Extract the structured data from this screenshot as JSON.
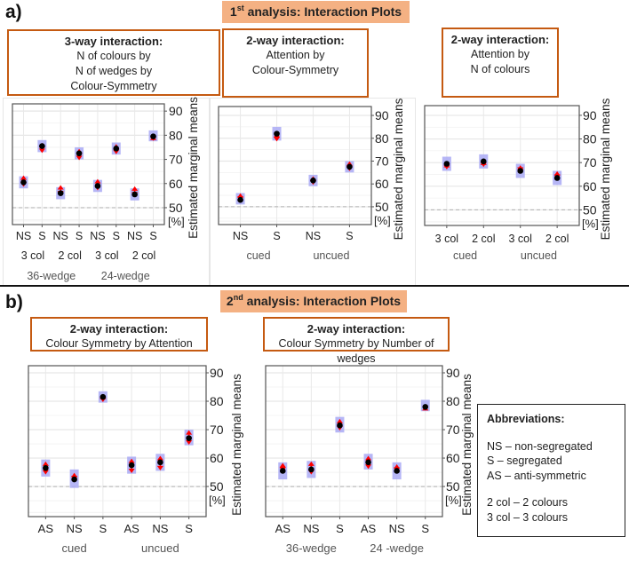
{
  "section_a": {
    "label": "a)",
    "header": {
      "num": "1",
      "sup": "st",
      "text": " analysis: Interaction Plots"
    }
  },
  "section_b": {
    "label": "b)",
    "header": {
      "num": "2",
      "sup": "nd",
      "text": " analysis: Interaction Plots"
    }
  },
  "titles": [
    {
      "bold": "3-way interaction:",
      "lines": [
        "N of colours by",
        "N of wedges by",
        "Colour-Symmetry"
      ]
    },
    {
      "bold": "2-way interaction:",
      "lines": [
        "Attention by",
        "Colour-Symmetry"
      ]
    },
    {
      "bold": "2-way interaction:",
      "lines": [
        "Attention by",
        "N of colours"
      ]
    },
    {
      "bold": "2-way interaction:",
      "lines": [
        "Colour Symmetry by Attention"
      ]
    },
    {
      "bold": "2-way interaction:",
      "lines": [
        "Colour Symmetry by Number of wedges"
      ]
    }
  ],
  "abbreviations": {
    "title": "Abbreviations:",
    "lines": [
      "NS – non-segregated",
      "S – segregated",
      "AS – anti-symmetric"
    ],
    "lines2": [
      "2 col – 2 colours",
      "3 col – 3 colours"
    ]
  },
  "colors": {
    "ci": "#a9a9f5",
    "mean": "#000000",
    "arrow": "#ff0000",
    "title_border": "#c55a11",
    "header_bg": "#f4b183"
  },
  "chart_data": [
    {
      "type": "scatter",
      "title": "3-way interaction: N of colours by N of wedges by Colour-Symmetry",
      "ylabel": "Estimated marginal means",
      "yunit": "[%]",
      "ylim": [
        43,
        93
      ],
      "yticks": [
        "50",
        "60",
        "70",
        "80",
        "90"
      ],
      "reference_line": 50,
      "grid": true,
      "categories": [
        "NS",
        "S",
        "NS",
        "S",
        "NS",
        "S",
        "NS",
        "S"
      ],
      "group_rows": [
        [
          {
            "label": "3 col",
            "from": 0,
            "to": 1
          },
          {
            "label": "2 col",
            "from": 2,
            "to": 3
          },
          {
            "label": "3 col",
            "from": 4,
            "to": 5
          },
          {
            "label": "2 col",
            "from": 6,
            "to": 7
          }
        ],
        [
          {
            "label": "36-wedge",
            "from": 0,
            "to": 3
          },
          {
            "label": "24-wedge",
            "from": 4,
            "to": 7
          }
        ]
      ],
      "values": [
        60.5,
        75.5,
        56,
        72.5,
        59,
        74.5,
        55.5,
        79.5
      ],
      "ci_low": [
        58,
        73,
        53.5,
        70,
        56.5,
        72,
        53,
        77.5
      ],
      "ci_high": [
        63,
        78,
        58.5,
        75,
        61.5,
        77,
        58,
        82
      ],
      "arrow_low": [
        59,
        73,
        55.5,
        70,
        57.5,
        72.5,
        55,
        78
      ],
      "arrow_high": [
        63,
        76.5,
        59,
        74,
        61.5,
        76,
        58.5,
        79.5
      ]
    },
    {
      "type": "scatter",
      "title": "2-way interaction: Attention by Colour-Symmetry",
      "ylabel": "Estimated marginal means",
      "yunit": "[%]",
      "ylim": [
        42.2,
        93.9
      ],
      "yticks": [
        "50",
        "60",
        "70",
        "80",
        "90"
      ],
      "reference_line": 50,
      "grid": true,
      "categories": [
        "NS",
        "S",
        "NS",
        "S"
      ],
      "group_rows": [
        [
          {
            "label": "cued",
            "from": 0,
            "to": 1
          },
          {
            "label": "uncued",
            "from": 2,
            "to": 3
          }
        ]
      ],
      "values": [
        53,
        82,
        61.5,
        67.5
      ],
      "ci_low": [
        51,
        79,
        59,
        65
      ],
      "ci_high": [
        56,
        85,
        64,
        70
      ],
      "arrow_low": [
        53,
        79,
        60,
        66
      ],
      "arrow_high": [
        55.5,
        82,
        63,
        69.5
      ]
    },
    {
      "type": "scatter",
      "title": "2-way interaction: Attention by N of colours",
      "ylabel": "Estimated marginal means",
      "yunit": "[%]",
      "ylim": [
        43.4,
        94.1
      ],
      "yticks": [
        "50",
        "60",
        "70",
        "80",
        "90"
      ],
      "reference_line": 50,
      "grid": true,
      "categories": [
        "3 col",
        "2 col",
        "3 col",
        "2 col"
      ],
      "group_rows": [
        [
          {
            "label": "cued",
            "from": 0,
            "to": 1
          },
          {
            "label": "uncued",
            "from": 2,
            "to": 3
          }
        ]
      ],
      "values": [
        69.5,
        70.5,
        66.5,
        63.5
      ],
      "ci_low": [
        66.5,
        67.5,
        63.5,
        60.5
      ],
      "ci_high": [
        72.5,
        73.5,
        69.5,
        66.5
      ],
      "arrow_low": [
        67.5,
        68.5,
        66.5,
        63.5
      ],
      "arrow_high": [
        69.5,
        70.5,
        68.5,
        66
      ]
    },
    {
      "type": "scatter",
      "title": "2-way interaction: Colour Symmetry by Attention",
      "ylabel": "Estimated marginal means",
      "yunit": "[%]",
      "ylim": [
        39.4,
        92.5
      ],
      "yticks": [
        "50",
        "60",
        "70",
        "80",
        "90"
      ],
      "reference_line": 50,
      "grid": true,
      "categories": [
        "AS",
        "NS",
        "S",
        "AS",
        "NS",
        "S"
      ],
      "group_rows": [
        [
          {
            "label": "cued",
            "from": 0,
            "to": 2
          },
          {
            "label": "uncued",
            "from": 3,
            "to": 5
          }
        ]
      ],
      "values": [
        56.5,
        52.5,
        81.5,
        57.5,
        58.5,
        67
      ],
      "ci_low": [
        53.5,
        49.5,
        79.5,
        54.5,
        55.5,
        64.5
      ],
      "ci_high": [
        59.5,
        56,
        83.5,
        60.5,
        61.5,
        70
      ],
      "arrow_low": [
        54.5,
        52.5,
        80,
        55,
        56,
        65
      ],
      "arrow_high": [
        58.5,
        54.5,
        82,
        59.5,
        60.5,
        69.5
      ]
    },
    {
      "type": "scatter",
      "title": "2-way interaction: Colour Symmetry by Number of wedges",
      "ylabel": "Estimated marginal means",
      "yunit": "[%]",
      "ylim": [
        39.4,
        92.5
      ],
      "yticks": [
        "50",
        "60",
        "70",
        "80",
        "90"
      ],
      "reference_line": 50,
      "grid": true,
      "categories": [
        "AS",
        "NS",
        "S",
        "AS",
        "NS",
        "S"
      ],
      "group_rows": [
        [
          {
            "label": "36-wedge",
            "from": 0,
            "to": 2
          },
          {
            "label": "24 -wedge",
            "from": 3,
            "to": 5
          }
        ]
      ],
      "values": [
        55.5,
        56,
        71.5,
        58.5,
        55.5,
        78
      ],
      "ci_low": [
        52.5,
        53,
        69,
        56,
        52.5,
        76.5
      ],
      "ci_high": [
        58.5,
        59,
        74.5,
        61.5,
        58.5,
        80.5
      ],
      "arrow_low": [
        55.5,
        54.5,
        70,
        56.5,
        55.5,
        77
      ],
      "arrow_high": [
        58,
        58.5,
        73.5,
        60.5,
        57.5,
        78
      ]
    }
  ]
}
